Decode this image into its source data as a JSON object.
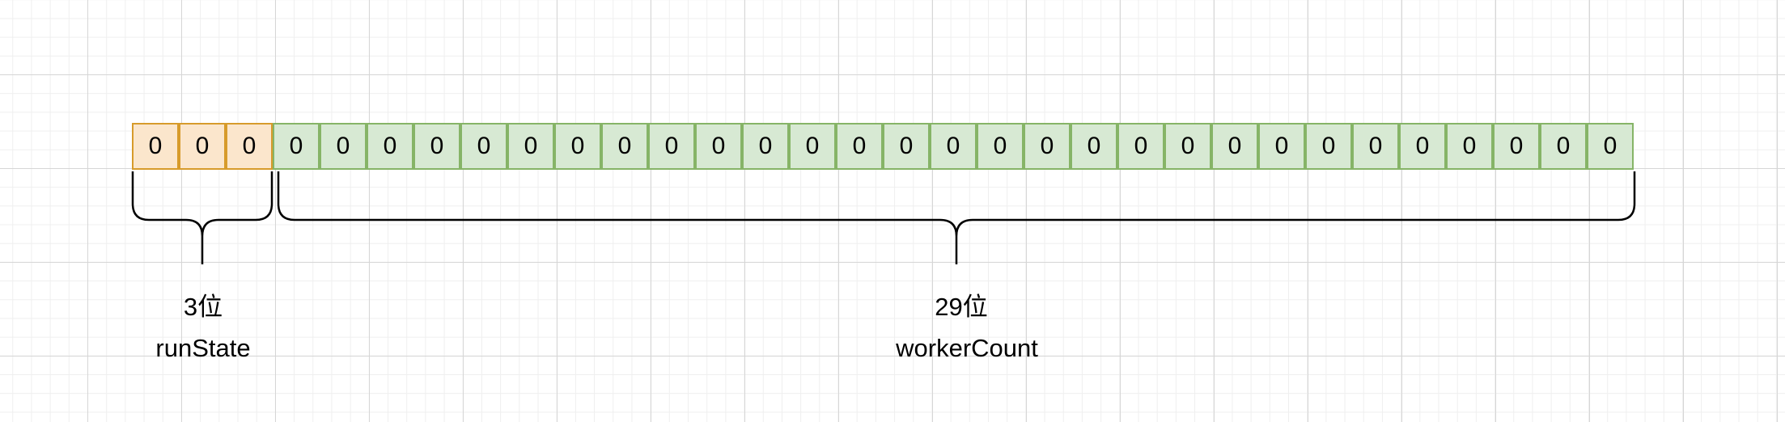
{
  "register": {
    "high_bits": [
      "0",
      "0",
      "0"
    ],
    "low_bits": [
      "0",
      "0",
      "0",
      "0",
      "0",
      "0",
      "0",
      "0",
      "0",
      "0",
      "0",
      "0",
      "0",
      "0",
      "0",
      "0",
      "0",
      "0",
      "0",
      "0",
      "0",
      "0",
      "0",
      "0",
      "0",
      "0",
      "0",
      "0",
      "0"
    ]
  },
  "groups": {
    "run_state": {
      "bits_label": "3位",
      "name": "runState"
    },
    "worker_count": {
      "bits_label": "29位",
      "name": "workerCount"
    }
  },
  "colors": {
    "high_fill": "#fbe6cc",
    "high_border": "#d79b2b",
    "low_fill": "#d7e9d3",
    "low_border": "#86b467",
    "brace": "#000000"
  }
}
